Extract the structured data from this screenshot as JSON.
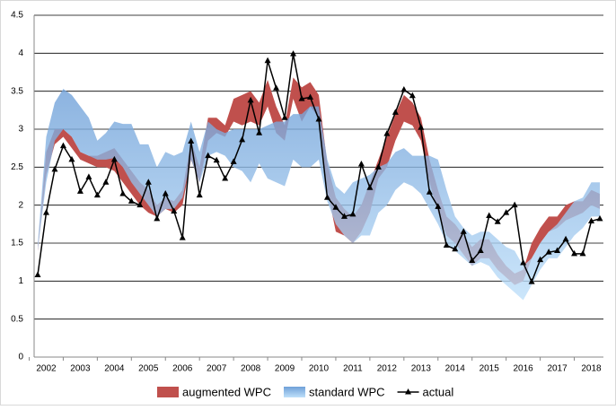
{
  "chart_data": {
    "type": "band-line",
    "categories": [
      null,
      "2002",
      null,
      null,
      null,
      "2003",
      null,
      null,
      null,
      "2004",
      null,
      null,
      null,
      "2005",
      null,
      null,
      null,
      "2006",
      null,
      null,
      null,
      "2007",
      null,
      null,
      null,
      "2008",
      null,
      null,
      null,
      "2009",
      null,
      null,
      null,
      "2010",
      null,
      null,
      null,
      "2011",
      null,
      null,
      null,
      "2012",
      null,
      null,
      null,
      "2013",
      null,
      null,
      null,
      "2014",
      null,
      null,
      null,
      "2015",
      null,
      null,
      null,
      "2016",
      null,
      null,
      null,
      "2017",
      null,
      null,
      null,
      "2018",
      null
    ],
    "ylim": [
      0,
      4.5
    ],
    "yticks": [
      0,
      0.5,
      1,
      1.5,
      2,
      2.5,
      3,
      3.5,
      4,
      4.5
    ],
    "grid": true,
    "legend": "bottom",
    "series": [
      {
        "name": "augmented WPC",
        "color": "#c0504d",
        "high": [
          1.45,
          2.7,
          3.0,
          3.0,
          2.9,
          2.7,
          2.65,
          2.65,
          2.7,
          2.75,
          2.6,
          2.45,
          2.3,
          2.2,
          2.0,
          2.1,
          2.05,
          2.2,
          2.85,
          2.5,
          3.15,
          3.15,
          3.05,
          3.4,
          3.45,
          3.5,
          3.35,
          3.65,
          3.3,
          3.05,
          3.68,
          3.55,
          3.62,
          3.45,
          2.55,
          2.1,
          1.95,
          1.85,
          2.0,
          2.3,
          2.6,
          2.9,
          3.2,
          3.45,
          3.35,
          3.15,
          2.6,
          2.2,
          1.85,
          1.75,
          1.6,
          1.45,
          1.55,
          1.55,
          1.35,
          1.2,
          1.1,
          1.15,
          1.5,
          1.7,
          1.85,
          1.85,
          2.0,
          2.05,
          2.05,
          2.2,
          2.15
        ],
        "low": [
          1.4,
          2.4,
          2.8,
          2.9,
          2.75,
          2.6,
          2.55,
          2.5,
          2.5,
          2.45,
          2.3,
          2.15,
          2.0,
          1.9,
          1.85,
          1.95,
          1.9,
          2.0,
          2.6,
          2.3,
          2.85,
          2.95,
          2.9,
          3.1,
          3.05,
          3.1,
          3.05,
          3.3,
          2.95,
          2.85,
          3.4,
          3.1,
          3.3,
          3.15,
          2.2,
          1.65,
          1.6,
          1.5,
          1.65,
          1.9,
          2.35,
          2.5,
          2.85,
          3.1,
          3.05,
          2.85,
          2.3,
          1.9,
          1.6,
          1.5,
          1.35,
          1.2,
          1.3,
          1.3,
          1.15,
          1.05,
          0.95,
          1.0,
          1.3,
          1.5,
          1.65,
          1.7,
          1.8,
          1.85,
          1.9,
          2.0,
          1.95
        ]
      },
      {
        "name": "standard WPC",
        "color": "#7fb2e5",
        "high": [
          1.5,
          2.9,
          3.35,
          3.53,
          3.45,
          3.3,
          3.15,
          2.85,
          2.95,
          3.1,
          3.07,
          3.07,
          2.8,
          2.8,
          2.5,
          2.7,
          2.65,
          2.7,
          3.1,
          2.7,
          3.1,
          3.0,
          2.95,
          3.0,
          3.0,
          3.0,
          3.0,
          3.05,
          3.1,
          3.1,
          3.2,
          3.2,
          3.3,
          3.3,
          2.6,
          2.25,
          2.15,
          2.3,
          2.35,
          2.4,
          2.5,
          2.55,
          2.7,
          2.75,
          2.65,
          2.65,
          2.65,
          2.6,
          2.2,
          1.85,
          1.7,
          1.6,
          1.65,
          1.65,
          1.55,
          1.45,
          1.4,
          1.2,
          1.3,
          1.5,
          1.65,
          1.75,
          1.9,
          2.05,
          2.1,
          2.3,
          2.3
        ],
        "low": [
          1.4,
          2.3,
          2.85,
          3.0,
          2.9,
          2.7,
          2.65,
          2.6,
          2.6,
          2.62,
          2.5,
          2.3,
          2.15,
          2.0,
          1.85,
          1.95,
          1.95,
          2.1,
          2.6,
          2.3,
          2.65,
          2.7,
          2.65,
          2.5,
          2.45,
          2.3,
          2.55,
          2.35,
          2.3,
          2.25,
          2.6,
          2.5,
          2.5,
          2.6,
          2.05,
          1.75,
          1.6,
          1.5,
          1.6,
          1.6,
          1.9,
          2.0,
          2.2,
          2.3,
          2.25,
          2.15,
          1.95,
          1.75,
          1.5,
          1.4,
          1.3,
          1.2,
          1.25,
          1.2,
          1.05,
          0.95,
          0.85,
          0.75,
          0.95,
          1.15,
          1.3,
          1.3,
          1.45,
          1.6,
          1.7,
          1.85,
          1.85
        ]
      },
      {
        "name": "actual",
        "color": "#000000",
        "values": [
          1.08,
          1.9,
          2.47,
          2.78,
          2.6,
          2.18,
          2.37,
          2.13,
          2.3,
          2.6,
          2.15,
          2.05,
          2.0,
          2.3,
          1.82,
          2.15,
          1.92,
          1.57,
          2.84,
          2.13,
          2.65,
          2.59,
          2.35,
          2.57,
          2.86,
          3.38,
          2.95,
          3.9,
          3.54,
          3.15,
          3.99,
          3.4,
          3.42,
          3.13,
          2.1,
          1.97,
          1.85,
          1.88,
          2.54,
          2.23,
          2.5,
          2.94,
          3.22,
          3.52,
          3.44,
          3.02,
          2.17,
          1.98,
          1.47,
          1.42,
          1.65,
          1.27,
          1.4,
          1.86,
          1.78,
          1.9,
          2.0,
          1.24,
          0.99,
          1.28,
          1.38,
          1.4,
          1.55,
          1.36,
          1.36,
          1.79,
          1.82
        ]
      }
    ]
  }
}
